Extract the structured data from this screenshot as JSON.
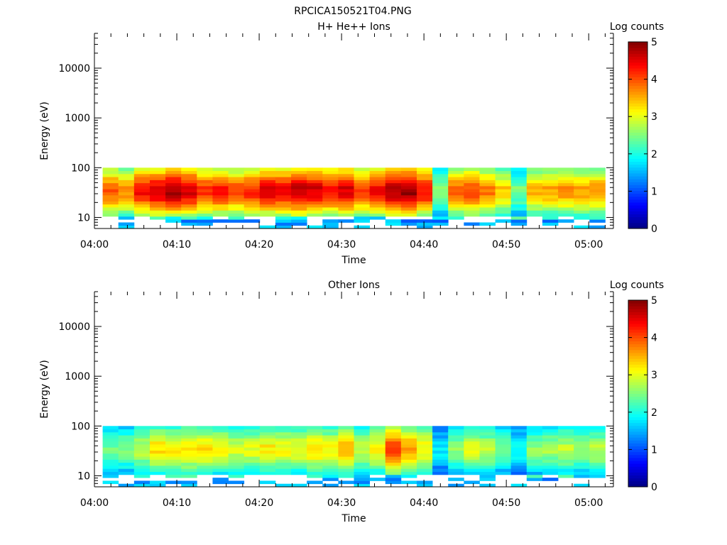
{
  "figure_title": "RPCICA150521T04.PNG",
  "chart_data": [
    {
      "type": "heatmap",
      "title": "H+ He++ Ions",
      "xlabel": "Time",
      "ylabel": "Energy (eV)",
      "x_range": [
        "04:00",
        "05:03"
      ],
      "x_ticks": [
        "04:00",
        "04:10",
        "04:20",
        "04:30",
        "04:40",
        "04:50",
        "05:00"
      ],
      "y_scale": "log",
      "y_range": [
        6,
        50000
      ],
      "y_ticks": [
        "10",
        "100",
        "1000",
        "10000"
      ],
      "data_time_range": [
        "04:01",
        "05:02"
      ],
      "data_energy_range": [
        6,
        100
      ],
      "colorbar": {
        "label": "Log counts",
        "range": [
          0,
          5
        ],
        "ticks": [
          "0",
          "1",
          "2",
          "3",
          "4",
          "5"
        ],
        "colormap": "jet"
      },
      "column_peak_log_counts": [
        4.0,
        3.7,
        4.4,
        4.6,
        4.8,
        4.6,
        4.2,
        4.3,
        4.0,
        4.2,
        4.5,
        4.5,
        4.7,
        4.6,
        4.4,
        4.6,
        4.1,
        4.4,
        4.8,
        4.9,
        4.4,
        2.6,
        3.9,
        4.1,
        3.8,
        3.4,
        2.5,
        3.5,
        3.6,
        3.7,
        3.6,
        3.7
      ]
    },
    {
      "type": "heatmap",
      "title": "Other Ions",
      "xlabel": "Time",
      "ylabel": "Energy (eV)",
      "x_range": [
        "04:00",
        "05:03"
      ],
      "x_ticks": [
        "04:00",
        "04:10",
        "04:20",
        "04:30",
        "04:40",
        "04:50",
        "05:00"
      ],
      "y_scale": "log",
      "y_range": [
        6,
        50000
      ],
      "y_ticks": [
        "10",
        "100",
        "1000",
        "10000"
      ],
      "data_time_range": [
        "04:01",
        "05:02"
      ],
      "data_energy_range": [
        6,
        100
      ],
      "colorbar": {
        "label": "Log counts",
        "range": [
          0,
          5
        ],
        "ticks": [
          "0",
          "1",
          "2",
          "3",
          "4",
          "5"
        ],
        "colormap": "jet"
      },
      "column_peak_log_counts": [
        2.4,
        2.5,
        2.8,
        3.3,
        3.2,
        3.3,
        3.3,
        3.1,
        2.9,
        3.0,
        3.2,
        3.1,
        3.1,
        3.3,
        3.1,
        3.5,
        2.9,
        3.2,
        4.1,
        3.6,
        3.2,
        1.8,
        2.6,
        3.0,
        2.8,
        2.4,
        2.0,
        2.6,
        2.7,
        2.8,
        2.6,
        2.8
      ]
    }
  ]
}
